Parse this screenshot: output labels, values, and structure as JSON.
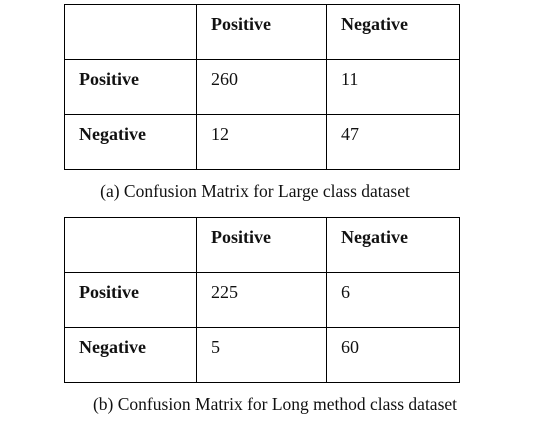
{
  "tables": [
    {
      "columns": [
        "Positive",
        "Negative"
      ],
      "rows": [
        {
          "label": "Positive",
          "values": [
            260,
            11
          ]
        },
        {
          "label": "Negative",
          "values": [
            12,
            47
          ]
        }
      ],
      "caption": "(a) Confusion Matrix for Large class dataset"
    },
    {
      "columns": [
        "Positive",
        "Negative"
      ],
      "rows": [
        {
          "label": "Positive",
          "values": [
            225,
            6
          ]
        },
        {
          "label": "Negative",
          "values": [
            5,
            60
          ]
        }
      ],
      "caption": "(b) Confusion Matrix for Long method class dataset"
    }
  ]
}
